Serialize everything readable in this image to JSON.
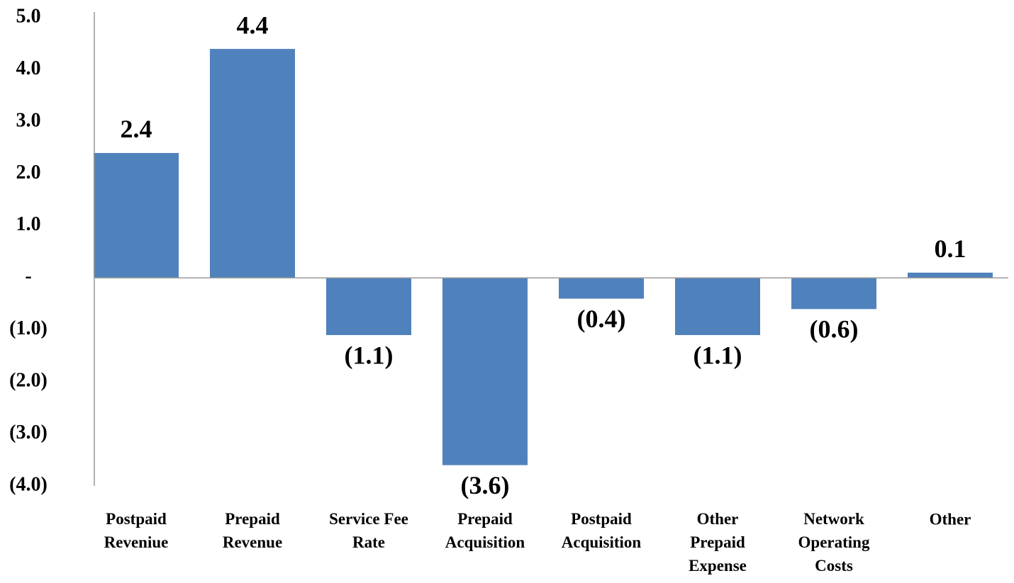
{
  "chart_data": {
    "type": "bar",
    "categories": [
      "Postpaid\nReveniue",
      "Prepaid\nRevenue",
      "Service Fee\nRate",
      "Prepaid\nAcquisition",
      "Postpaid\nAcquisition",
      "Other\nPrepaid\nExpense",
      "Network\nOperating\nCosts",
      "Other"
    ],
    "values": [
      2.4,
      4.4,
      -1.1,
      -3.6,
      -0.4,
      -1.1,
      -0.6,
      0.1
    ],
    "value_labels": [
      "2.4",
      "4.4",
      "(1.1)",
      "(3.6)",
      "(0.4)",
      "(1.1)",
      "(0.6)",
      "0.1"
    ],
    "color": "#4f81bd",
    "ylim": [
      -4,
      5
    ],
    "yticks": [
      {
        "value": 5,
        "label": "5.0"
      },
      {
        "value": 4,
        "label": "4.0"
      },
      {
        "value": 3,
        "label": "3.0"
      },
      {
        "value": 2,
        "label": "2.0"
      },
      {
        "value": 1,
        "label": "1.0"
      },
      {
        "value": 0,
        "label": "-"
      },
      {
        "value": -1,
        "label": "(1.0)"
      },
      {
        "value": -2,
        "label": "(2.0)"
      },
      {
        "value": -3,
        "label": "(3.0)"
      },
      {
        "value": -4,
        "label": "(4.0)"
      }
    ],
    "grid": false
  }
}
